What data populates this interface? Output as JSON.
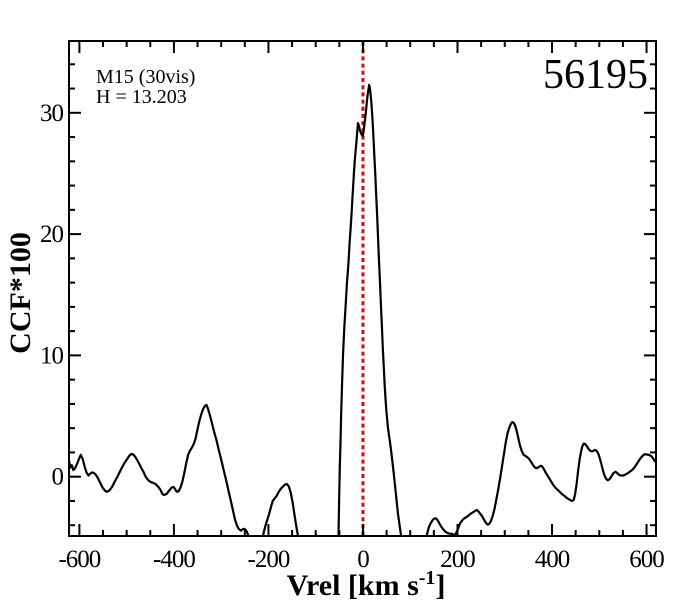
{
  "figure": {
    "background": "#ffffff"
  },
  "chart_data": {
    "type": "line",
    "title": "",
    "annotations": {
      "cluster": "M15 (30vis)",
      "magnitude": "H = 13.203",
      "star_id": "56195"
    },
    "xlabel_prefix": "Vrel [km s",
    "xlabel_sup": "-1",
    "xlabel_suffix": "]",
    "ylabel": "CCF*100",
    "xlim": [
      -622,
      620
    ],
    "ylim": [
      -4.89,
      35.92
    ],
    "grid": false,
    "legend": null,
    "axis_color": "#000000",
    "x_major_ticks": [
      -600,
      -400,
      -200,
      0,
      200,
      400,
      600
    ],
    "x_tick_labels": [
      "-600",
      "-400",
      "-200",
      "0",
      "200",
      "400",
      "600"
    ],
    "x_minor_step": 50,
    "y_major_ticks": [
      0,
      10,
      20,
      30
    ],
    "y_tick_labels": [
      "0",
      "10",
      "20",
      "30"
    ],
    "y_minor_step": 2,
    "ref_line": {
      "x": 0,
      "color": "#ee0000",
      "style": "dotted"
    },
    "series": [
      {
        "name": "CCF",
        "color": "#000000",
        "points": [
          [
            -622,
            1.3
          ],
          [
            -619,
            0.75
          ],
          [
            -616,
            0.95
          ],
          [
            -613,
            0.55
          ],
          [
            -609,
            0.7
          ],
          [
            -605,
            1.05
          ],
          [
            -600,
            1.55
          ],
          [
            -597,
            1.8
          ],
          [
            -593,
            1.45
          ],
          [
            -589,
            0.85
          ],
          [
            -585,
            0.35
          ],
          [
            -581,
            0.1
          ],
          [
            -577,
            0.25
          ],
          [
            -573,
            0.35
          ],
          [
            -569,
            0.3
          ],
          [
            -565,
            0.15
          ],
          [
            -561,
            -0.1
          ],
          [
            -556,
            -0.5
          ],
          [
            -551,
            -0.9
          ],
          [
            -546,
            -1.15
          ],
          [
            -542,
            -1.25
          ],
          [
            -537,
            -1.15
          ],
          [
            -531,
            -0.85
          ],
          [
            -525,
            -0.4
          ],
          [
            -519,
            0.05
          ],
          [
            -512,
            0.6
          ],
          [
            -505,
            1.1
          ],
          [
            -499,
            1.45
          ],
          [
            -494,
            1.75
          ],
          [
            -490,
            1.87
          ],
          [
            -486,
            1.83
          ],
          [
            -481,
            1.6
          ],
          [
            -476,
            1.25
          ],
          [
            -470,
            0.8
          ],
          [
            -464,
            0.35
          ],
          [
            -459,
            -0.05
          ],
          [
            -454,
            -0.3
          ],
          [
            -449,
            -0.45
          ],
          [
            -444,
            -0.5
          ],
          [
            -439,
            -0.6
          ],
          [
            -434,
            -0.8
          ],
          [
            -429,
            -1.05
          ],
          [
            -424,
            -1.45
          ],
          [
            -420,
            -1.5
          ],
          [
            -415,
            -1.4
          ],
          [
            -410,
            -1.15
          ],
          [
            -405,
            -0.9
          ],
          [
            -401,
            -0.85
          ],
          [
            -397,
            -1.05
          ],
          [
            -394,
            -1.25
          ],
          [
            -390,
            -1.2
          ],
          [
            -386,
            -0.9
          ],
          [
            -382,
            -0.4
          ],
          [
            -378,
            0.3
          ],
          [
            -374,
            1.1
          ],
          [
            -370,
            1.8
          ],
          [
            -366,
            2.15
          ],
          [
            -362,
            2.4
          ],
          [
            -358,
            2.7
          ],
          [
            -354,
            3.2
          ],
          [
            -350,
            3.95
          ],
          [
            -346,
            4.6
          ],
          [
            -342,
            5.15
          ],
          [
            -338,
            5.6
          ],
          [
            -334,
            5.85
          ],
          [
            -331,
            5.92
          ],
          [
            -328,
            5.6
          ],
          [
            -324,
            5.1
          ],
          [
            -320,
            4.5
          ],
          [
            -315,
            3.7
          ],
          [
            -310,
            3.0
          ],
          [
            -305,
            2.2
          ],
          [
            -300,
            1.4
          ],
          [
            -295,
            0.6
          ],
          [
            -290,
            -0.2
          ],
          [
            -285,
            -1.1
          ],
          [
            -280,
            -1.9
          ],
          [
            -275,
            -2.8
          ],
          [
            -271,
            -3.5
          ],
          [
            -267,
            -4.0
          ],
          [
            -263,
            -4.3
          ],
          [
            -258,
            -4.45
          ],
          [
            -253,
            -4.3
          ],
          [
            -249,
            -4.35
          ],
          [
            -245,
            -4.6
          ],
          [
            -242,
            -4.9
          ],
          [
            -239,
            -5.4
          ],
          [
            -214,
            -5.4
          ],
          [
            -210,
            -4.6
          ],
          [
            -206,
            -4.0
          ],
          [
            -202,
            -3.5
          ],
          [
            -198,
            -3.0
          ],
          [
            -194,
            -2.4
          ],
          [
            -191,
            -2.0
          ],
          [
            -187,
            -1.8
          ],
          [
            -183,
            -1.6
          ],
          [
            -179,
            -1.3
          ],
          [
            -174,
            -1.0
          ],
          [
            -169,
            -0.8
          ],
          [
            -165,
            -0.65
          ],
          [
            -161,
            -0.6
          ],
          [
            -157,
            -0.8
          ],
          [
            -153,
            -1.3
          ],
          [
            -149,
            -2.1
          ],
          [
            -145,
            -3.1
          ],
          [
            -141,
            -4.1
          ],
          [
            -138,
            -4.8
          ],
          [
            -136,
            -5.4
          ],
          [
            -52,
            -5.4
          ],
          [
            -50.5,
            -2.0
          ],
          [
            -49,
            0.8
          ],
          [
            -47.5,
            2.8
          ],
          [
            -46,
            5.3
          ],
          [
            -44,
            8.0
          ],
          [
            -42,
            10.2
          ],
          [
            -39.5,
            12.3
          ],
          [
            -37,
            13.9
          ],
          [
            -34,
            15.9
          ],
          [
            -31,
            17.4
          ],
          [
            -28,
            19.4
          ],
          [
            -25,
            21.2
          ],
          [
            -22,
            23.2
          ],
          [
            -19,
            25.1
          ],
          [
            -17,
            26.2
          ],
          [
            -14.5,
            27.3
          ],
          [
            -12.5,
            28.3
          ],
          [
            -10.5,
            29.15
          ],
          [
            -8.5,
            28.9
          ],
          [
            -6,
            28.5
          ],
          [
            -3,
            28.2
          ],
          [
            -0.5,
            28.1
          ],
          [
            1.5,
            28.5
          ],
          [
            3.5,
            29.2
          ],
          [
            5.5,
            29.8
          ],
          [
            7.5,
            30.6
          ],
          [
            9.5,
            31.4
          ],
          [
            11.5,
            31.9
          ],
          [
            13,
            32.3
          ],
          [
            14.5,
            32.1
          ],
          [
            16,
            31.6
          ],
          [
            18,
            30.7
          ],
          [
            20,
            29.6
          ],
          [
            22,
            28.1
          ],
          [
            24,
            26.5
          ],
          [
            26,
            24.9
          ],
          [
            28,
            23.2
          ],
          [
            30,
            21.4
          ],
          [
            32,
            19.6
          ],
          [
            34,
            17.8
          ],
          [
            36,
            16.0
          ],
          [
            38,
            14.2
          ],
          [
            40,
            12.4
          ],
          [
            42,
            10.6
          ],
          [
            44,
            9.0
          ],
          [
            46,
            7.5
          ],
          [
            48,
            6.2
          ],
          [
            50,
            5.2
          ],
          [
            53,
            4.0
          ],
          [
            56,
            3.2
          ],
          [
            59,
            2.3
          ],
          [
            62,
            1.3
          ],
          [
            65,
            0.3
          ],
          [
            68,
            -0.8
          ],
          [
            71,
            -1.9
          ],
          [
            74,
            -3.0
          ],
          [
            77,
            -3.9
          ],
          [
            80,
            -4.7
          ],
          [
            82,
            -5.4
          ],
          [
            133,
            -5.4
          ],
          [
            136,
            -4.7
          ],
          [
            139,
            -4.2
          ],
          [
            143,
            -3.85
          ],
          [
            147,
            -3.6
          ],
          [
            151,
            -3.45
          ],
          [
            155,
            -3.45
          ],
          [
            159,
            -3.65
          ],
          [
            163,
            -3.95
          ],
          [
            167,
            -4.2
          ],
          [
            171,
            -4.4
          ],
          [
            175,
            -4.55
          ],
          [
            179,
            -4.65
          ],
          [
            183,
            -4.7
          ],
          [
            187,
            -4.7
          ],
          [
            191,
            -4.75
          ],
          [
            194,
            -4.85
          ],
          [
            197,
            -4.65
          ],
          [
            200,
            -4.4
          ],
          [
            203,
            -4.1
          ],
          [
            206,
            -3.8
          ],
          [
            210,
            -3.6
          ],
          [
            214,
            -3.45
          ],
          [
            218,
            -3.35
          ],
          [
            222,
            -3.25
          ],
          [
            226,
            -3.1
          ],
          [
            230,
            -3.0
          ],
          [
            234,
            -2.9
          ],
          [
            238,
            -2.8
          ],
          [
            241,
            -2.75
          ],
          [
            244,
            -2.85
          ],
          [
            248,
            -3.05
          ],
          [
            252,
            -3.25
          ],
          [
            256,
            -3.55
          ],
          [
            260,
            -3.8
          ],
          [
            264,
            -3.95
          ],
          [
            267,
            -3.9
          ],
          [
            270,
            -3.7
          ],
          [
            274,
            -3.3
          ],
          [
            278,
            -2.7
          ],
          [
            282,
            -1.9
          ],
          [
            286,
            -1.1
          ],
          [
            290,
            -0.2
          ],
          [
            294,
            0.8
          ],
          [
            298,
            1.8
          ],
          [
            302,
            2.8
          ],
          [
            306,
            3.6
          ],
          [
            310,
            4.1
          ],
          [
            313,
            4.35
          ],
          [
            316,
            4.5
          ],
          [
            319,
            4.45
          ],
          [
            322,
            4.2
          ],
          [
            325,
            3.8
          ],
          [
            328,
            3.3
          ],
          [
            332,
            2.6
          ],
          [
            336,
            2.1
          ],
          [
            340,
            1.8
          ],
          [
            344,
            1.7
          ],
          [
            348,
            1.6
          ],
          [
            352,
            1.45
          ],
          [
            356,
            1.2
          ],
          [
            360,
            0.95
          ],
          [
            364,
            0.75
          ],
          [
            368,
            0.7
          ],
          [
            372,
            0.8
          ],
          [
            376,
            0.9
          ],
          [
            379,
            0.85
          ],
          [
            383,
            0.6
          ],
          [
            387,
            0.3
          ],
          [
            391,
            0.05
          ],
          [
            395,
            -0.2
          ],
          [
            399,
            -0.45
          ],
          [
            403,
            -0.7
          ],
          [
            407,
            -0.9
          ],
          [
            411,
            -1.05
          ],
          [
            415,
            -1.2
          ],
          [
            419,
            -1.35
          ],
          [
            423,
            -1.5
          ],
          [
            427,
            -1.6
          ],
          [
            431,
            -1.75
          ],
          [
            435,
            -1.85
          ],
          [
            439,
            -1.95
          ],
          [
            443,
            -2.0
          ],
          [
            446,
            -1.9
          ],
          [
            449,
            -1.4
          ],
          [
            452,
            -0.6
          ],
          [
            455,
            0.4
          ],
          [
            458,
            1.3
          ],
          [
            461,
            2.0
          ],
          [
            464,
            2.5
          ],
          [
            467,
            2.73
          ],
          [
            470,
            2.7
          ],
          [
            474,
            2.5
          ],
          [
            478,
            2.25
          ],
          [
            482,
            2.1
          ],
          [
            486,
            2.1
          ],
          [
            490,
            2.2
          ],
          [
            494,
            2.15
          ],
          [
            498,
            1.9
          ],
          [
            502,
            1.4
          ],
          [
            506,
            0.8
          ],
          [
            510,
            0.2
          ],
          [
            514,
            -0.15
          ],
          [
            518,
            -0.3
          ],
          [
            522,
            -0.2
          ],
          [
            526,
            0.05
          ],
          [
            530,
            0.3
          ],
          [
            534,
            0.4
          ],
          [
            538,
            0.3
          ],
          [
            542,
            0.15
          ],
          [
            546,
            0.1
          ],
          [
            551,
            0.1
          ],
          [
            556,
            0.2
          ],
          [
            561,
            0.3
          ],
          [
            566,
            0.45
          ],
          [
            571,
            0.6
          ],
          [
            576,
            0.85
          ],
          [
            581,
            1.15
          ],
          [
            586,
            1.45
          ],
          [
            591,
            1.7
          ],
          [
            596,
            1.85
          ],
          [
            601,
            1.83
          ],
          [
            606,
            1.78
          ],
          [
            610,
            1.7
          ],
          [
            614,
            1.5
          ],
          [
            617,
            1.3
          ],
          [
            620,
            1.2
          ]
        ]
      }
    ]
  }
}
